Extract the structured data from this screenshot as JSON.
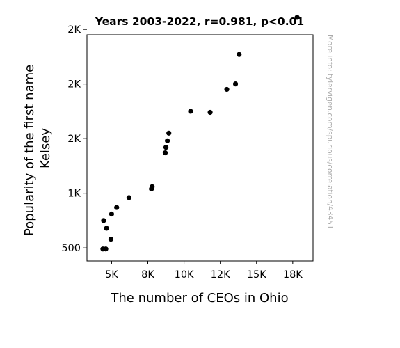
{
  "chart_data": {
    "type": "scatter",
    "title": "Years 2003-2022, r=0.981, p<0.01",
    "xlabel": "The number of CEOs in Ohio",
    "ylabel_lines": [
      "Popularity of the first name",
      "Kelsey"
    ],
    "watermark": "More info: tylervigen.com/spurious/correlation/43451",
    "xlim": [
      3300,
      18900
    ],
    "ylim": [
      380,
      2450
    ],
    "x_ticks": [
      {
        "value": 5000,
        "label": "5K"
      },
      {
        "value": 7500,
        "label": "8K"
      },
      {
        "value": 10000,
        "label": "10K"
      },
      {
        "value": 12500,
        "label": "12K"
      },
      {
        "value": 15000,
        "label": "15K"
      },
      {
        "value": 17500,
        "label": "18K"
      }
    ],
    "y_ticks": [
      {
        "value": 500,
        "label": "500"
      },
      {
        "value": 1000,
        "label": "1K"
      },
      {
        "value": 1500,
        "label": "2K"
      },
      {
        "value": 2000,
        "label": "2K"
      },
      {
        "value": 2500,
        "label": "2K"
      }
    ],
    "points": [
      {
        "x": 4400,
        "y": 490
      },
      {
        "x": 4600,
        "y": 490
      },
      {
        "x": 4950,
        "y": 580
      },
      {
        "x": 4450,
        "y": 750
      },
      {
        "x": 4650,
        "y": 680
      },
      {
        "x": 5000,
        "y": 810
      },
      {
        "x": 5350,
        "y": 870
      },
      {
        "x": 6200,
        "y": 960
      },
      {
        "x": 7750,
        "y": 1040
      },
      {
        "x": 7800,
        "y": 1060
      },
      {
        "x": 8700,
        "y": 1370
      },
      {
        "x": 8850,
        "y": 1480
      },
      {
        "x": 8750,
        "y": 1420
      },
      {
        "x": 8950,
        "y": 1550
      },
      {
        "x": 10450,
        "y": 1750
      },
      {
        "x": 11800,
        "y": 1740
      },
      {
        "x": 12950,
        "y": 1950
      },
      {
        "x": 13550,
        "y": 2000
      },
      {
        "x": 13800,
        "y": 2270
      },
      {
        "x": 17800,
        "y": 2610
      }
    ],
    "colors": {
      "marker": "#000000",
      "background": "#ffffff",
      "axis": "#000000",
      "watermark": "#aaaaaa"
    }
  }
}
